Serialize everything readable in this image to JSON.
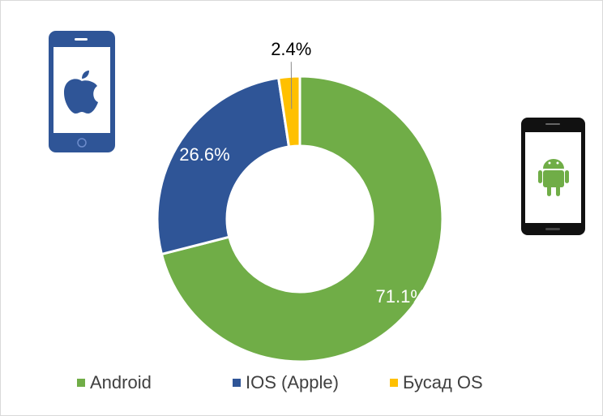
{
  "chart_data": {
    "type": "donut",
    "categories": [
      "Android",
      "IOS (Apple)",
      "Бусад OS"
    ],
    "values": [
      71.1,
      26.6,
      2.4
    ],
    "value_labels": [
      "71.1%",
      "26.6%",
      "2.4%"
    ],
    "colors": [
      "#70ad47",
      "#2f5597",
      "#ffc000"
    ],
    "legend": "bottom"
  }
}
